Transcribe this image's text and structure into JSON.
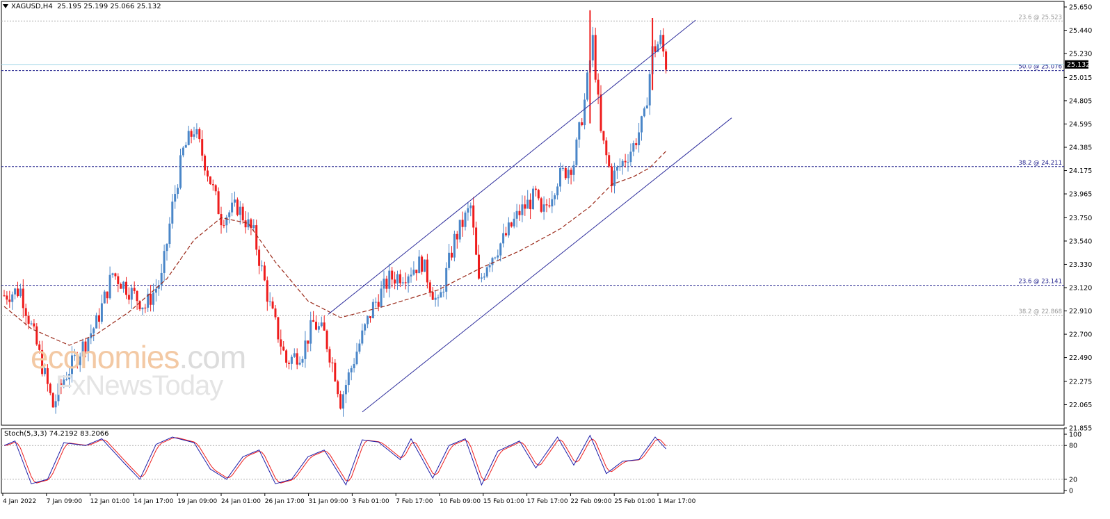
{
  "header": {
    "symbol": "XAGUSD,H4",
    "ohlc": "25.195 25.199 25.066 25.132"
  },
  "watermark": {
    "line1_brand": "economies",
    "line1_suffix": ".com",
    "line2": "FxNewsToday"
  },
  "colors": {
    "bull": "#4a86c8",
    "bear": "#ee1c1c",
    "ma": "#9b2a1a",
    "channel": "#2d2d9c",
    "level": "#1e1e8c",
    "level_faint": "#9a9a9a",
    "current_price": "#a9d9e8",
    "stoch_main": "#1c1ca8",
    "stoch_signal": "#ee1c1c"
  },
  "chart_data": [
    {
      "type": "candlestick",
      "symbol": "XAGUSD",
      "timeframe": "H4",
      "price_axis": {
        "ticks": [
          "25.650",
          "25.440",
          "25.230",
          "25.015",
          "24.805",
          "24.595",
          "24.385",
          "24.175",
          "23.965",
          "23.750",
          "23.540",
          "23.330",
          "23.120",
          "22.910",
          "22.700",
          "22.490",
          "22.275",
          "22.065",
          "21.855"
        ],
        "range": [
          21.855,
          25.65
        ]
      },
      "current_price": "25.132",
      "time_axis": {
        "ticks": [
          "4 Jan 2022",
          "7 Jan 09:00",
          "12 Jan 01:00",
          "14 Jan 17:00",
          "19 Jan 09:00",
          "24 Jan 01:00",
          "26 Jan 17:00",
          "31 Jan 09:00",
          "3 Feb 01:00",
          "7 Feb 17:00",
          "10 Feb 09:00",
          "15 Feb 01:00",
          "17 Feb 17:00",
          "22 Feb 09:00",
          "25 Feb 01:00",
          "1 Mar 17:00"
        ]
      },
      "price_waypoints": [
        [
          0,
          23.05
        ],
        [
          6,
          23.1
        ],
        [
          12,
          22.6
        ],
        [
          18,
          22.05
        ],
        [
          22,
          22.3
        ],
        [
          28,
          22.55
        ],
        [
          34,
          22.8
        ],
        [
          40,
          23.25
        ],
        [
          46,
          23.1
        ],
        [
          52,
          22.95
        ],
        [
          58,
          23.2
        ],
        [
          62,
          23.85
        ],
        [
          66,
          24.35
        ],
        [
          70,
          24.55
        ],
        [
          74,
          24.25
        ],
        [
          80,
          23.75
        ],
        [
          86,
          23.85
        ],
        [
          92,
          23.6
        ],
        [
          98,
          22.95
        ],
        [
          104,
          22.45
        ],
        [
          110,
          22.55
        ],
        [
          114,
          22.8
        ],
        [
          118,
          22.7
        ],
        [
          122,
          22.35
        ],
        [
          124,
          22.1
        ],
        [
          130,
          22.55
        ],
        [
          136,
          22.95
        ],
        [
          142,
          23.2
        ],
        [
          148,
          23.25
        ],
        [
          154,
          23.35
        ],
        [
          160,
          22.95
        ],
        [
          166,
          23.55
        ],
        [
          172,
          23.85
        ],
        [
          175,
          23.15
        ],
        [
          178,
          23.35
        ],
        [
          184,
          23.55
        ],
        [
          190,
          23.8
        ],
        [
          196,
          23.95
        ],
        [
          198,
          23.75
        ],
        [
          204,
          24.1
        ],
        [
          210,
          24.25
        ],
        [
          214,
          24.8
        ],
        [
          217,
          25.35
        ],
        [
          220,
          24.5
        ],
        [
          224,
          24.1
        ],
        [
          228,
          24.25
        ],
        [
          232,
          24.4
        ],
        [
          236,
          24.65
        ],
        [
          239,
          25.25
        ],
        [
          242,
          25.35
        ],
        [
          244,
          25.132
        ]
      ],
      "ma_waypoints": [
        [
          0,
          22.95
        ],
        [
          10,
          22.75
        ],
        [
          24,
          22.6
        ],
        [
          34,
          22.7
        ],
        [
          46,
          22.9
        ],
        [
          60,
          23.2
        ],
        [
          70,
          23.55
        ],
        [
          80,
          23.75
        ],
        [
          90,
          23.7
        ],
        [
          100,
          23.35
        ],
        [
          112,
          23.0
        ],
        [
          124,
          22.85
        ],
        [
          140,
          22.95
        ],
        [
          160,
          23.1
        ],
        [
          176,
          23.3
        ],
        [
          190,
          23.45
        ],
        [
          205,
          23.65
        ],
        [
          216,
          23.85
        ],
        [
          224,
          24.05
        ],
        [
          232,
          24.12
        ],
        [
          238,
          24.2
        ],
        [
          244,
          24.35
        ]
      ],
      "channel_lines": {
        "upper": {
          "from": [
            "29 Jan",
            22.88
          ],
          "to": [
            "2 Mar",
            25.53
          ]
        },
        "lower": {
          "from": [
            "3 Feb 01:00",
            22.0
          ],
          "to": [
            "3 Mar",
            24.65
          ]
        }
      },
      "fibonacci_levels": [
        {
          "label": "23.6 @ 25.523",
          "price": 25.523,
          "style": "faint"
        },
        {
          "label": "50.0 @ 25.076",
          "price": 25.076,
          "style": "strong"
        },
        {
          "label": "38.2 @ 24.211",
          "price": 24.211,
          "style": "strong"
        },
        {
          "label": "23.6 @ 23.141",
          "price": 23.141,
          "style": "strong"
        },
        {
          "label": "38.2 @ 22.868",
          "price": 22.868,
          "style": "faint"
        }
      ]
    },
    {
      "type": "line",
      "indicator": "Stoch(5,3,3)",
      "label": "Stoch(5,3,3) 74.2192 83.2066",
      "main_value": 74.2192,
      "signal_value": 83.2066,
      "range": [
        0,
        100
      ],
      "ticks": [
        "100",
        "80",
        "20",
        "0"
      ],
      "levels": [
        80,
        20
      ],
      "main_waypoints": [
        [
          0,
          80
        ],
        [
          4,
          88
        ],
        [
          10,
          12
        ],
        [
          16,
          20
        ],
        [
          22,
          85
        ],
        [
          30,
          80
        ],
        [
          36,
          92
        ],
        [
          44,
          50
        ],
        [
          50,
          20
        ],
        [
          56,
          82
        ],
        [
          62,
          95
        ],
        [
          70,
          85
        ],
        [
          76,
          38
        ],
        [
          82,
          20
        ],
        [
          88,
          60
        ],
        [
          94,
          72
        ],
        [
          100,
          12
        ],
        [
          106,
          20
        ],
        [
          112,
          60
        ],
        [
          118,
          72
        ],
        [
          126,
          10
        ],
        [
          132,
          90
        ],
        [
          138,
          86
        ],
        [
          146,
          55
        ],
        [
          150,
          92
        ],
        [
          158,
          22
        ],
        [
          164,
          80
        ],
        [
          170,
          92
        ],
        [
          176,
          10
        ],
        [
          182,
          70
        ],
        [
          190,
          88
        ],
        [
          196,
          40
        ],
        [
          204,
          95
        ],
        [
          210,
          45
        ],
        [
          216,
          98
        ],
        [
          222,
          30
        ],
        [
          228,
          52
        ],
        [
          234,
          55
        ],
        [
          240,
          95
        ],
        [
          244,
          74
        ]
      ]
    }
  ]
}
